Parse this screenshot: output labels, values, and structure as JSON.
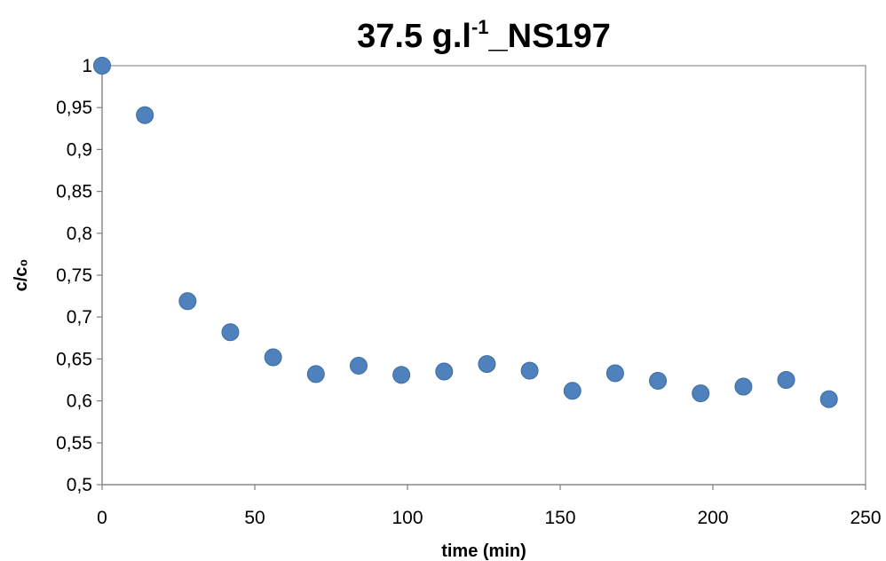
{
  "chart_data": {
    "type": "scatter",
    "title": "37.5 g.l",
    "title_superscript": "-1",
    "title_suffix": "_NS197",
    "xlabel": "time (min)",
    "ylabel": "c/c₀",
    "xlim": [
      0,
      250
    ],
    "ylim": [
      0.5,
      1
    ],
    "x_ticks": [
      0,
      50,
      100,
      150,
      200,
      250
    ],
    "x_tick_labels": [
      "0",
      "50",
      "100",
      "150",
      "200",
      "250"
    ],
    "y_ticks": [
      0.5,
      0.55,
      0.6,
      0.65,
      0.7,
      0.75,
      0.8,
      0.85,
      0.9,
      0.95,
      1
    ],
    "y_tick_labels": [
      "0,5",
      "0,55",
      "0,6",
      "0,65",
      "0,7",
      "0,75",
      "0,8",
      "0,85",
      "0,9",
      "0,95",
      "1"
    ],
    "grid": false,
    "legend": "none",
    "marker_color": "#4f81bd",
    "series": [
      {
        "x": [
          0,
          14,
          28,
          42,
          56,
          70,
          84,
          98,
          112,
          126,
          140,
          154,
          168,
          182,
          196,
          210,
          224,
          238
        ],
        "y": [
          1.0,
          0.941,
          0.719,
          0.682,
          0.652,
          0.632,
          0.642,
          0.631,
          0.635,
          0.644,
          0.636,
          0.612,
          0.633,
          0.624,
          0.609,
          0.617,
          0.625,
          0.602
        ]
      }
    ]
  }
}
